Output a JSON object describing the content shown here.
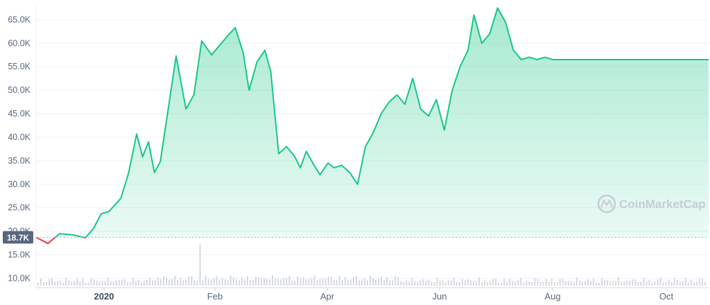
{
  "chart_data": {
    "type": "area",
    "x": [
      "2019-11-19",
      "2019-11-25",
      "2019-12-01",
      "2019-12-08",
      "2019-12-14",
      "2019-12-18",
      "2019-12-22",
      "2019-12-26",
      "2020-01-01",
      "2020-01-05",
      "2020-01-09",
      "2020-01-12",
      "2020-01-15",
      "2020-01-18",
      "2020-01-21",
      "2020-01-25",
      "2020-01-29",
      "2020-02-03",
      "2020-02-07",
      "2020-02-11",
      "2020-02-16",
      "2020-02-20",
      "2020-02-24",
      "2020-02-28",
      "2020-03-03",
      "2020-03-06",
      "2020-03-10",
      "2020-03-14",
      "2020-03-17",
      "2020-03-21",
      "2020-03-25",
      "2020-03-29",
      "2020-04-01",
      "2020-04-04",
      "2020-04-08",
      "2020-04-11",
      "2020-04-15",
      "2020-04-18",
      "2020-04-22",
      "2020-04-26",
      "2020-04-30",
      "2020-05-04",
      "2020-05-08",
      "2020-05-12",
      "2020-05-16",
      "2020-05-20",
      "2020-05-24",
      "2020-05-28",
      "2020-06-01",
      "2020-06-05",
      "2020-06-09",
      "2020-06-13",
      "2020-06-17",
      "2020-06-21",
      "2020-06-25",
      "2020-06-28",
      "2020-07-02",
      "2020-07-06",
      "2020-07-10",
      "2020-07-14",
      "2020-07-18",
      "2020-07-22",
      "2020-07-26",
      "2020-07-30",
      "2020-08-03",
      "2020-08-07",
      "2020-08-11",
      "2020-08-15",
      "2020-08-18",
      "2020-08-22",
      "2020-08-26",
      "2020-08-30",
      "2020-09-03",
      "2020-09-07",
      "2020-09-11",
      "2020-09-15",
      "2020-09-19",
      "2020-09-23",
      "2020-09-27",
      "2020-10-01",
      "2020-10-05",
      "2020-10-09",
      "2020-10-13",
      "2020-10-17",
      "2020-10-21",
      "2020-10-25"
    ],
    "values": [
      18.7,
      17.4,
      19.5,
      19.2,
      18.6,
      20.5,
      23.7,
      24.2,
      27.0,
      32.5,
      40.7,
      35.8,
      39.0,
      32.5,
      34.8,
      46.0,
      57.3,
      46.0,
      49.0,
      60.5,
      57.5,
      59.5,
      61.5,
      63.3,
      58.0,
      50.0,
      56.0,
      58.5,
      54.0,
      36.5,
      38.0,
      36.0,
      33.5,
      37.0,
      34.0,
      32.0,
      34.5,
      33.5,
      34.0,
      32.5,
      30.0,
      38.0,
      41.0,
      45.0,
      47.5,
      49.0,
      47.0,
      52.5,
      46.0,
      44.5,
      48.0,
      41.5,
      50.0,
      55.0,
      58.5,
      66.0,
      60.0,
      62.0,
      67.5,
      64.5,
      58.5,
      56.5,
      57.0,
      56.5,
      57.0,
      56.5,
      56.5,
      56.5,
      56.5,
      56.5,
      56.5,
      56.5,
      56.5,
      56.5,
      56.5,
      56.5,
      56.5,
      56.5,
      56.5,
      56.5,
      56.5,
      56.5,
      56.5,
      56.5,
      56.5,
      56.5
    ],
    "ylim": [
      8,
      68
    ],
    "yticks": [
      "10.0K",
      "15.0K",
      "20.0K",
      "25.0K",
      "30.0K",
      "35.0K",
      "40.0K",
      "45.0K",
      "50.0K",
      "55.0K",
      "60.0K",
      "65.0K"
    ],
    "xticks": [
      {
        "label": "2020",
        "bold": true
      },
      {
        "label": "Feb",
        "bold": false
      },
      {
        "label": "Apr",
        "bold": false
      },
      {
        "label": "Jun",
        "bold": false
      },
      {
        "label": "Aug",
        "bold": false
      },
      {
        "label": "Oct",
        "bold": false
      }
    ],
    "baseline": {
      "label": "18.7K",
      "value": 18.7
    },
    "volume_peak_index": 28,
    "grid": true,
    "watermark": "CoinMarketCap",
    "colors": {
      "line_up": "#16c784",
      "line_down": "#ea3943",
      "fill_top": "#16c784",
      "baseline_badge": "#58667e",
      "volume": "#d5d9e0",
      "grid": "#eff2f5"
    }
  }
}
